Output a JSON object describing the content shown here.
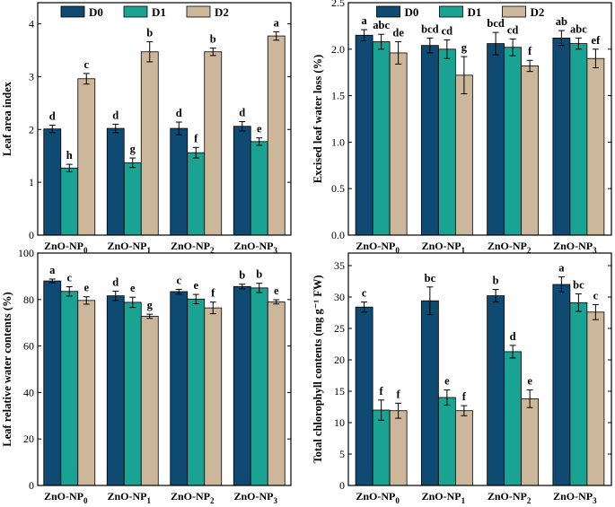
{
  "chart_data": [
    {
      "type": "bar",
      "ylabel": "Leaf area index",
      "ylim": [
        0,
        4.4
      ],
      "yticks": [
        0,
        1,
        2,
        3,
        4
      ],
      "ytick_labels": [
        "0",
        "1",
        "2",
        "3",
        "4"
      ],
      "categories": [
        {
          "base": "ZnO-NP",
          "sub": "0"
        },
        {
          "base": "ZnO-NP",
          "sub": "1"
        },
        {
          "base": "ZnO-NP",
          "sub": "2"
        },
        {
          "base": "ZnO-NP",
          "sub": "3"
        }
      ],
      "legend": [
        "D0",
        "D1",
        "D2"
      ],
      "series": [
        {
          "name": "D0",
          "color": "#0e4a72",
          "values": [
            2.01,
            2.02,
            2.02,
            2.06
          ],
          "errors": [
            0.07,
            0.08,
            0.12,
            0.09
          ],
          "letters": [
            "d",
            "d",
            "d",
            "d"
          ]
        },
        {
          "name": "D1",
          "color": "#1aa293",
          "values": [
            1.27,
            1.37,
            1.56,
            1.77
          ],
          "errors": [
            0.07,
            0.09,
            0.1,
            0.07
          ],
          "letters": [
            "h",
            "g",
            "f",
            "e"
          ]
        },
        {
          "name": "D2",
          "color": "#cdb79a",
          "values": [
            2.96,
            3.47,
            3.47,
            3.77
          ],
          "errors": [
            0.1,
            0.19,
            0.07,
            0.08
          ],
          "letters": [
            "c",
            "b",
            "b",
            "a"
          ]
        }
      ]
    },
    {
      "type": "bar",
      "ylabel": "Excised leaf water loss (%)",
      "ylim": [
        0,
        2.5
      ],
      "yticks": [
        0,
        0.5,
        1,
        1.5,
        2,
        2.5
      ],
      "ytick_labels": [
        "0.0",
        "0.5",
        "1.0",
        "1.5",
        "2.0",
        "2.5"
      ],
      "categories": [
        {
          "base": "ZnO-NP",
          "sub": "0"
        },
        {
          "base": "ZnO-NP",
          "sub": "1"
        },
        {
          "base": "ZnO-NP",
          "sub": "2"
        },
        {
          "base": "ZnO-NP",
          "sub": "3"
        }
      ],
      "legend": [
        "D0",
        "D1",
        "D2"
      ],
      "series": [
        {
          "name": "D0",
          "color": "#0e4a72",
          "values": [
            2.15,
            2.04,
            2.06,
            2.12
          ],
          "errors": [
            0.06,
            0.08,
            0.12,
            0.08
          ],
          "letters": [
            "a",
            "bcd",
            "bcd",
            "ab"
          ]
        },
        {
          "name": "D1",
          "color": "#1aa293",
          "values": [
            2.08,
            2.0,
            2.02,
            2.06
          ],
          "errors": [
            0.08,
            0.1,
            0.09,
            0.06
          ],
          "letters": [
            "abc",
            "cd",
            "cd",
            "abc"
          ]
        },
        {
          "name": "D2",
          "color": "#cdb79a",
          "values": [
            1.96,
            1.72,
            1.82,
            1.9
          ],
          "errors": [
            0.12,
            0.2,
            0.06,
            0.1
          ],
          "letters": [
            "de",
            "g",
            "f",
            "ef"
          ]
        }
      ]
    },
    {
      "type": "bar",
      "ylabel": "Leaf relative water contents (%)",
      "ylim": [
        0,
        100
      ],
      "yticks": [
        0,
        20,
        40,
        60,
        80,
        100
      ],
      "ytick_labels": [
        "0",
        "20",
        "40",
        "60",
        "80",
        "100"
      ],
      "categories": [
        {
          "base": "ZnO-NP",
          "sub": "0"
        },
        {
          "base": "ZnO-NP",
          "sub": "1"
        },
        {
          "base": "ZnO-NP",
          "sub": "2"
        },
        {
          "base": "ZnO-NP",
          "sub": "3"
        }
      ],
      "legend": [],
      "series": [
        {
          "name": "D0",
          "color": "#0e4a72",
          "values": [
            88.0,
            81.6,
            83.4,
            85.6
          ],
          "errors": [
            0.8,
            2.0,
            1.0,
            1.0
          ],
          "letters": [
            "a",
            "d",
            "c",
            "b"
          ]
        },
        {
          "name": "D1",
          "color": "#1aa293",
          "values": [
            83.5,
            78.8,
            80.2,
            85.0
          ],
          "errors": [
            2.0,
            2.2,
            2.0,
            2.0
          ],
          "letters": [
            "c",
            "e",
            "e",
            "b"
          ]
        },
        {
          "name": "D2",
          "color": "#cdb79a",
          "values": [
            79.6,
            72.8,
            76.4,
            79.0
          ],
          "errors": [
            1.6,
            0.9,
            2.5,
            0.9
          ],
          "letters": [
            "e",
            "g",
            "f",
            "e"
          ]
        }
      ]
    },
    {
      "type": "bar",
      "ylabel": "Total chlorophyll contents (mg g⁻¹ FW)",
      "ylim": [
        0,
        37
      ],
      "yticks": [
        0,
        5,
        10,
        15,
        20,
        25,
        30,
        35
      ],
      "ytick_labels": [
        "0",
        "5",
        "10",
        "15",
        "20",
        "25",
        "30",
        "35"
      ],
      "categories": [
        {
          "base": "ZnO-NP",
          "sub": "0"
        },
        {
          "base": "ZnO-NP",
          "sub": "1"
        },
        {
          "base": "ZnO-NP",
          "sub": "2"
        },
        {
          "base": "ZnO-NP",
          "sub": "3"
        }
      ],
      "legend": [],
      "series": [
        {
          "name": "D0",
          "color": "#0e4a72",
          "values": [
            28.4,
            29.4,
            30.2,
            32.0
          ],
          "errors": [
            0.8,
            2.2,
            1.0,
            1.2
          ],
          "letters": [
            "c",
            "bc",
            "b",
            "a"
          ]
        },
        {
          "name": "D1",
          "color": "#1aa293",
          "values": [
            12.0,
            14.0,
            21.3,
            29.1
          ],
          "errors": [
            1.6,
            1.2,
            1.0,
            1.4
          ],
          "letters": [
            "f",
            "e",
            "d",
            "bc"
          ]
        },
        {
          "name": "D2",
          "color": "#cdb79a",
          "values": [
            11.9,
            11.9,
            13.8,
            27.6
          ],
          "errors": [
            1.2,
            0.8,
            1.4,
            1.2
          ],
          "letters": [
            "f",
            "f",
            "e",
            "c"
          ]
        }
      ]
    }
  ]
}
